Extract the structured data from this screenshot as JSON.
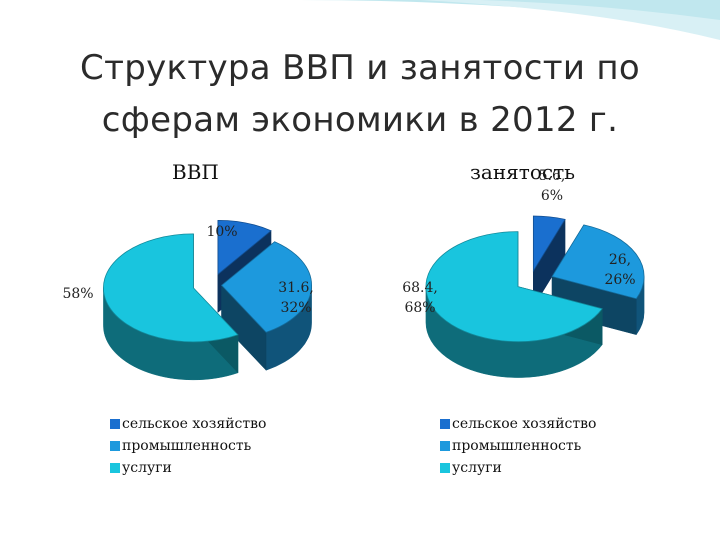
{
  "slide": {
    "title_line1": "Структура ВВП и занятости по",
    "title_line2": "сферам экономики в 2012 г."
  },
  "colors": {
    "agriculture": "#1a6fcf",
    "industry": "#1d99dd",
    "services": "#19c5de",
    "banner": "#b9e4ec"
  },
  "chart_data": [
    {
      "type": "pie",
      "title": "ВВП",
      "categories": [
        "сельское хозяйство",
        "промышленность",
        "услуги"
      ],
      "values": [
        10,
        31.6,
        58
      ],
      "data_labels": [
        "10%",
        "31.6,\n32%",
        "58%"
      ],
      "legend": "bottom",
      "exploded": true
    },
    {
      "type": "pie",
      "title": "занятость",
      "categories": [
        "сельское хозяйство",
        "промышленность",
        "услуги"
      ],
      "values": [
        5.6,
        26,
        68.4
      ],
      "data_labels": [
        "5.6,\n6%",
        "26,\n26%",
        "68.4,\n68%"
      ],
      "legend": "bottom",
      "exploded": true
    }
  ]
}
